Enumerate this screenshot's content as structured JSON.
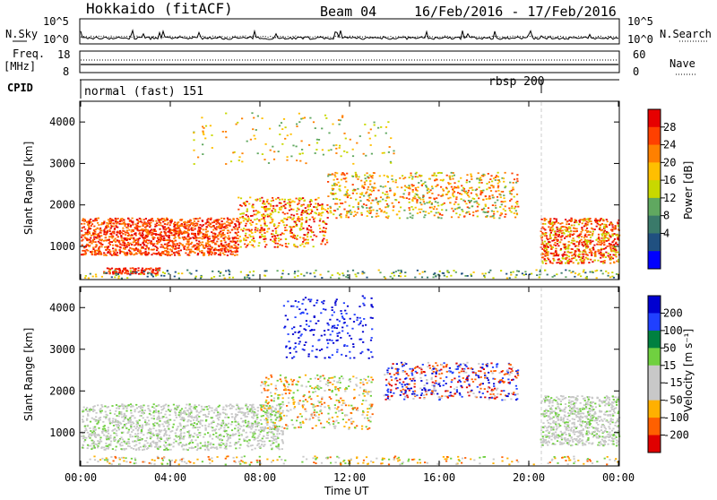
{
  "header": {
    "station": "Hokkaido (fitACF)",
    "beam": "Beam 04",
    "dates": "16/Feb/2016 - 17/Feb/2016"
  },
  "left_labels": {
    "nsky": "N.Sky",
    "freq": "Freq.",
    "freq_unit": "[MHz]",
    "cpid": "CPID"
  },
  "right_labels": {
    "nsearch": "N.Search",
    "nave": "Nave"
  },
  "noise_ticks": {
    "left": [
      "10^5",
      "10^0"
    ],
    "right": [
      "10^5",
      "10^0"
    ]
  },
  "freq_ticks": {
    "left": [
      "18",
      "8"
    ],
    "right": [
      "60",
      "0"
    ]
  },
  "cpid": {
    "mode1": "normal (fast) 151",
    "mode2": "rbsp 200"
  },
  "chart_data": [
    {
      "type": "heatmap",
      "name": "power",
      "ylabel": "Slant Range [km]",
      "yticks": [
        1000,
        2000,
        3000,
        4000
      ],
      "ylim": [
        200,
        4500
      ],
      "colorbar_label": "Power [dB]",
      "colorbar_ticks": [
        "28",
        "24",
        "20",
        "16",
        "12",
        "8",
        "4"
      ],
      "colorbar_colors": [
        "#e60000",
        "#ff4000",
        "#ff8000",
        "#ffbf00",
        "#c8d800",
        "#60a860",
        "#3a7a6a",
        "#205080",
        "#0000ff"
      ]
    },
    {
      "type": "heatmap",
      "name": "velocity",
      "ylabel": "Slant Range [km]",
      "yticks": [
        1000,
        2000,
        3000,
        4000
      ],
      "ylim": [
        200,
        4500
      ],
      "colorbar_label": "Velocity [m s⁻¹]",
      "colorbar_ticks": [
        "200",
        "100",
        "50",
        "15",
        "-15",
        "-50",
        "-100",
        "-200"
      ],
      "colorbar_colors": [
        "#0000d0",
        "#2040ff",
        "#008040",
        "#70d040",
        "#c8c8c8",
        "#c8c8c8",
        "#ffb000",
        "#ff6000",
        "#e00000"
      ]
    }
  ],
  "x_axis": {
    "label": "Time UT",
    "ticks": [
      "00:00",
      "04:00",
      "08:00",
      "12:00",
      "16:00",
      "20:00",
      "00:00"
    ]
  }
}
